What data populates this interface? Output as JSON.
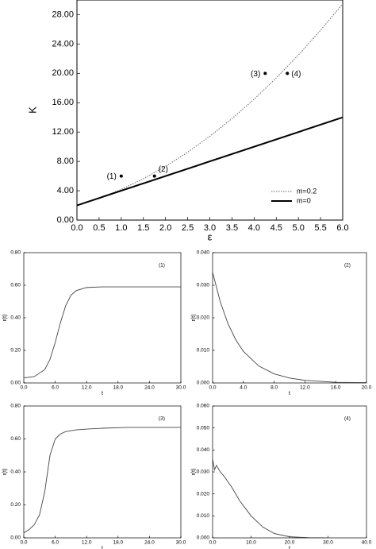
{
  "chart_data": [
    {
      "type": "line",
      "x_label": "ε",
      "y_label": "K",
      "xlim": [
        0,
        6
      ],
      "ylim": [
        0,
        30
      ],
      "xticks": [
        {
          "value": 0,
          "label": "0.0"
        },
        {
          "value": 0.5,
          "label": "0.5"
        },
        {
          "value": 1,
          "label": "1.0"
        },
        {
          "value": 1.5,
          "label": "1.5"
        },
        {
          "value": 2,
          "label": "2.0"
        },
        {
          "value": 2.5,
          "label": "2.5"
        },
        {
          "value": 3,
          "label": "3.0"
        },
        {
          "value": 3.5,
          "label": "3.5"
        },
        {
          "value": 4,
          "label": "4.0"
        },
        {
          "value": 4.5,
          "label": "4.5"
        },
        {
          "value": 5,
          "label": "5.0"
        },
        {
          "value": 5.5,
          "label": "5.5"
        },
        {
          "value": 6,
          "label": "6.0"
        }
      ],
      "yticks": [
        {
          "value": 0,
          "label": "0.00"
        },
        {
          "value": 4,
          "label": "4.00"
        },
        {
          "value": 8,
          "label": "8.00"
        },
        {
          "value": 12,
          "label": "12.00"
        },
        {
          "value": 16,
          "label": "16.00"
        },
        {
          "value": 20,
          "label": "20.00"
        },
        {
          "value": 24,
          "label": "24.00"
        },
        {
          "value": 28,
          "label": "28.00"
        }
      ],
      "legend": "lower right",
      "series": [
        {
          "name": "m=0.2",
          "color": "#666666",
          "style": "dotted",
          "x": [
            0,
            0.5,
            1,
            1.5,
            2,
            2.5,
            3,
            3.5,
            4,
            4.5,
            5,
            5.5,
            6
          ],
          "values": [
            2,
            2.97,
            4.18,
            5.63,
            7.32,
            9.25,
            11.42,
            13.83,
            16.48,
            19.37,
            22.5,
            25.87,
            29.48
          ]
        },
        {
          "name": "m=0",
          "color": "#000000",
          "style": "solid",
          "x": [
            0,
            6
          ],
          "values": [
            2,
            14
          ]
        }
      ],
      "points": {
        "labels": [
          "(1)",
          "(2)",
          "(3)",
          "(4)"
        ],
        "x": [
          1.0,
          1.75,
          4.25,
          4.75
        ],
        "y": [
          6.0,
          6.0,
          20.0,
          20.0
        ]
      }
    },
    {
      "type": "line",
      "panel_label": "(1)",
      "x_label": "t",
      "y_label": "r(t)",
      "xlim": [
        0,
        30
      ],
      "ylim": [
        0,
        0.8
      ],
      "xticks": [
        {
          "value": 0,
          "label": "0.0"
        },
        {
          "value": 6,
          "label": "6.0"
        },
        {
          "value": 12,
          "label": "12.0"
        },
        {
          "value": 18,
          "label": "18.0"
        },
        {
          "value": 24,
          "label": "24.0"
        },
        {
          "value": 30,
          "label": "30.0"
        }
      ],
      "yticks": [
        {
          "value": 0,
          "label": "0.00"
        },
        {
          "value": 0.2,
          "label": "0.20"
        },
        {
          "value": 0.4,
          "label": "0.40"
        },
        {
          "value": 0.6,
          "label": "0.60"
        },
        {
          "value": 0.8,
          "label": "0.80"
        }
      ],
      "series": [
        {
          "color": "#444444",
          "style": "solid",
          "x": [
            0,
            2,
            4,
            5,
            6,
            7,
            8,
            9,
            10,
            12,
            15,
            20,
            25,
            30
          ],
          "values": [
            0.031,
            0.039,
            0.082,
            0.144,
            0.248,
            0.371,
            0.474,
            0.538,
            0.567,
            0.586,
            0.59,
            0.59,
            0.59,
            0.59
          ]
        }
      ]
    },
    {
      "type": "line",
      "panel_label": "(2)",
      "x_label": "t",
      "y_label": "r(t)",
      "xlim": [
        0,
        20
      ],
      "ylim": [
        0,
        0.04
      ],
      "xticks": [
        {
          "value": 0,
          "label": "0.0"
        },
        {
          "value": 4,
          "label": "4.0"
        },
        {
          "value": 8,
          "label": "8.0"
        },
        {
          "value": 12,
          "label": "12.0"
        },
        {
          "value": 16,
          "label": "16.0"
        },
        {
          "value": 20,
          "label": "20.0"
        }
      ],
      "yticks": [
        {
          "value": 0,
          "label": "0.000"
        },
        {
          "value": 0.01,
          "label": "0.010"
        },
        {
          "value": 0.02,
          "label": "0.020"
        },
        {
          "value": 0.03,
          "label": "0.030"
        },
        {
          "value": 0.04,
          "label": "0.040"
        }
      ],
      "series": [
        {
          "color": "#444444",
          "style": "solid",
          "x": [
            0,
            1,
            2,
            3,
            4,
            6,
            8,
            10,
            12,
            16,
            20
          ],
          "values": [
            0.034,
            0.0249,
            0.0182,
            0.0133,
            0.0097,
            0.0052,
            0.0028,
            0.0015,
            0.0008,
            0.0002,
            0.0001
          ]
        }
      ]
    },
    {
      "type": "line",
      "panel_label": "(3)",
      "x_label": "t",
      "y_label": "r(t)",
      "xlim": [
        0,
        30
      ],
      "ylim": [
        0,
        0.8
      ],
      "xticks": [
        {
          "value": 0,
          "label": "0.0"
        },
        {
          "value": 6,
          "label": "6.0"
        },
        {
          "value": 12,
          "label": "12.0"
        },
        {
          "value": 18,
          "label": "18.0"
        },
        {
          "value": 24,
          "label": "24.0"
        },
        {
          "value": 30,
          "label": "30.0"
        }
      ],
      "yticks": [
        {
          "value": 0,
          "label": "0.00"
        },
        {
          "value": 0.2,
          "label": "0.20"
        },
        {
          "value": 0.4,
          "label": "0.40"
        },
        {
          "value": 0.6,
          "label": "0.60"
        },
        {
          "value": 0.8,
          "label": "0.80"
        }
      ],
      "series": [
        {
          "color": "#444444",
          "style": "solid",
          "x": [
            0,
            1,
            2,
            3,
            4,
            5,
            6,
            7,
            8,
            10,
            12,
            15,
            20,
            25,
            30
          ],
          "values": [
            0.03,
            0.05,
            0.08,
            0.14,
            0.28,
            0.5,
            0.6,
            0.63,
            0.645,
            0.655,
            0.66,
            0.665,
            0.67,
            0.67,
            0.67
          ]
        }
      ]
    },
    {
      "type": "line",
      "panel_label": "(4)",
      "x_label": "t",
      "y_label": "r(t)",
      "xlim": [
        0,
        40
      ],
      "ylim": [
        0,
        0.06
      ],
      "xticks": [
        {
          "value": 0,
          "label": "0.0"
        },
        {
          "value": 10,
          "label": "10.0"
        },
        {
          "value": 20,
          "label": "20.0"
        },
        {
          "value": 30,
          "label": "30.0"
        },
        {
          "value": 40,
          "label": "40.0"
        }
      ],
      "yticks": [
        {
          "value": 0,
          "label": "0.000"
        },
        {
          "value": 0.01,
          "label": "0.010"
        },
        {
          "value": 0.02,
          "label": "0.020"
        },
        {
          "value": 0.03,
          "label": "0.030"
        },
        {
          "value": 0.04,
          "label": "0.040"
        },
        {
          "value": 0.05,
          "label": "0.050"
        },
        {
          "value": 0.06,
          "label": "0.060"
        }
      ],
      "series": [
        {
          "color": "#444444",
          "style": "solid",
          "x": [
            0,
            0.5,
            1,
            2,
            3,
            5,
            7,
            10,
            13,
            16,
            20,
            25,
            30
          ],
          "values": [
            0.036,
            0.031,
            0.033,
            0.03,
            0.028,
            0.023,
            0.017,
            0.01,
            0.005,
            0.002,
            0.0005,
            0.0001,
            0
          ]
        }
      ]
    }
  ]
}
